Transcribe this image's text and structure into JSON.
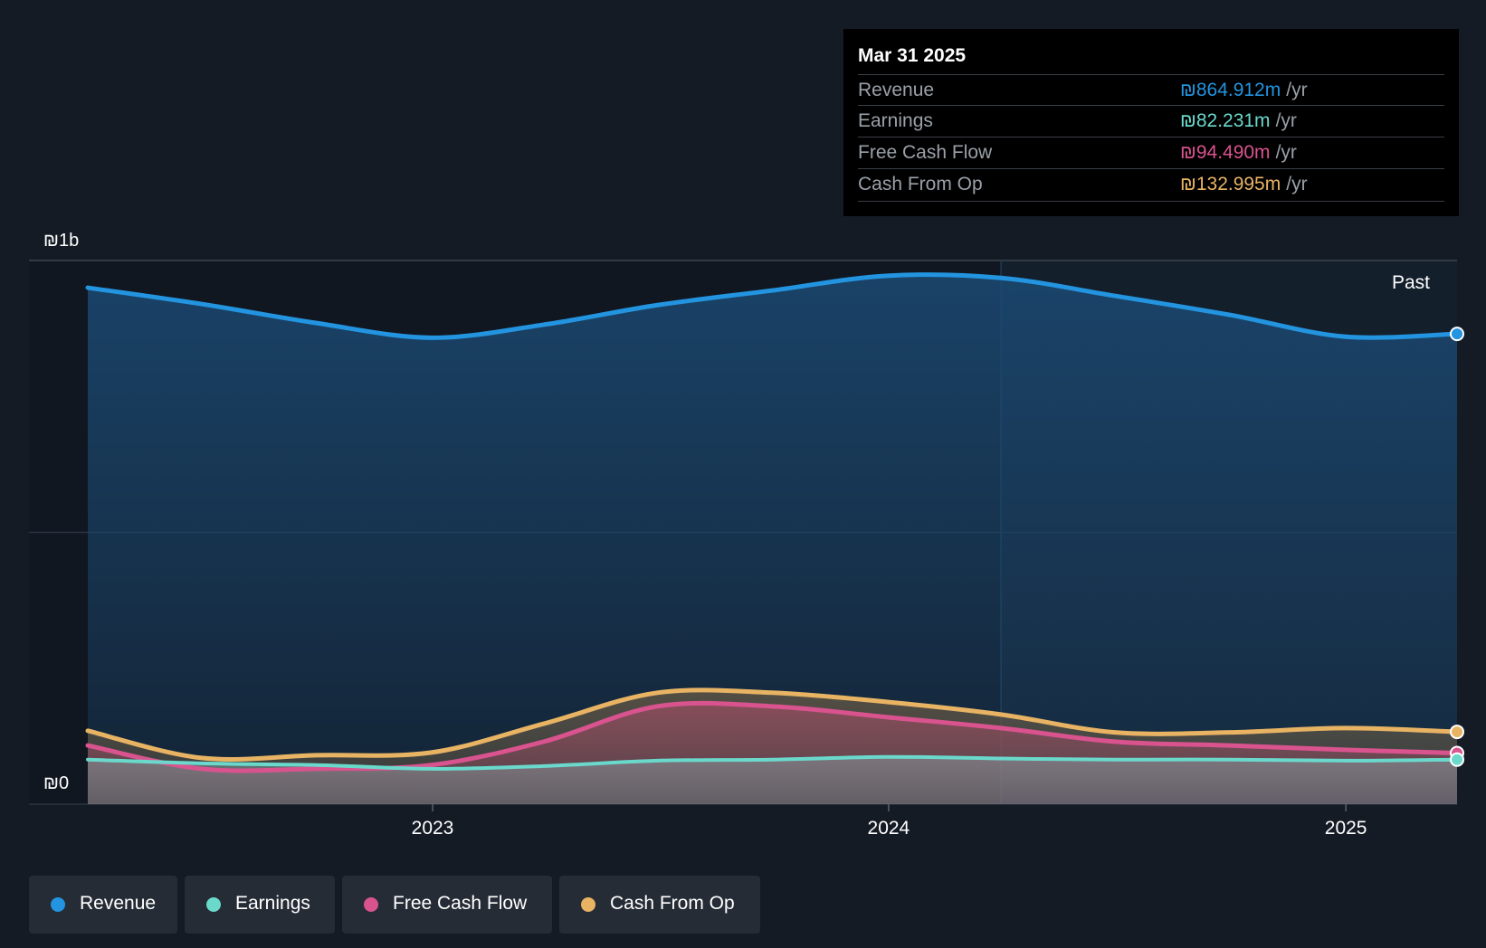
{
  "chart_data": {
    "type": "area",
    "ylim": [
      0,
      1000
    ],
    "y_unit": "₪m",
    "y_ticks": [
      {
        "value": 1000,
        "label": "₪1b"
      },
      {
        "value": 0,
        "label": "₪0"
      }
    ],
    "x_ticks": [
      {
        "date": "2023-01-01",
        "label": "2023"
      },
      {
        "date": "2024-01-01",
        "label": "2024"
      },
      {
        "date": "2025-01-01",
        "label": "2025"
      }
    ],
    "x_range": [
      "2022-03-31",
      "2025-03-31"
    ],
    "past_start": "2024-03-31",
    "past_label": "Past",
    "grid": true,
    "x": [
      "2022-03-31",
      "2022-06-30",
      "2022-09-30",
      "2022-12-31",
      "2023-03-31",
      "2023-06-30",
      "2023-09-30",
      "2023-12-31",
      "2024-03-31",
      "2024-06-30",
      "2024-09-30",
      "2024-12-31",
      "2025-03-31"
    ],
    "series": [
      {
        "name": "Revenue",
        "color": "#2394df",
        "values": [
          950,
          920,
          885,
          858,
          882,
          918,
          945,
          972,
          968,
          935,
          900,
          860,
          865
        ]
      },
      {
        "name": "Earnings",
        "color": "#6ad9cc",
        "values": [
          82,
          75,
          72,
          65,
          70,
          80,
          82,
          87,
          84,
          82,
          82,
          80,
          82
        ]
      },
      {
        "name": "Free Cash Flow",
        "color": "#d9538f",
        "values": [
          108,
          65,
          65,
          72,
          115,
          180,
          180,
          160,
          140,
          115,
          108,
          100,
          94
        ]
      },
      {
        "name": "Cash From Op",
        "color": "#e8b464",
        "values": [
          135,
          85,
          90,
          95,
          148,
          205,
          205,
          188,
          165,
          132,
          132,
          140,
          133
        ]
      }
    ]
  },
  "tooltip": {
    "date": "Mar 31 2025",
    "rows": [
      {
        "label": "Revenue",
        "value": "₪864.912m",
        "unit": "/yr",
        "color": "#2394df"
      },
      {
        "label": "Earnings",
        "value": "₪82.231m",
        "unit": "/yr",
        "color": "#6ad9cc"
      },
      {
        "label": "Free Cash Flow",
        "value": "₪94.490m",
        "unit": "/yr",
        "color": "#d9538f"
      },
      {
        "label": "Cash From Op",
        "value": "₪132.995m",
        "unit": "/yr",
        "color": "#e8b464"
      }
    ]
  },
  "legend": [
    {
      "label": "Revenue",
      "color": "#2394df"
    },
    {
      "label": "Earnings",
      "color": "#6ad9cc"
    },
    {
      "label": "Free Cash Flow",
      "color": "#d9538f"
    },
    {
      "label": "Cash From Op",
      "color": "#e8b464"
    }
  ]
}
